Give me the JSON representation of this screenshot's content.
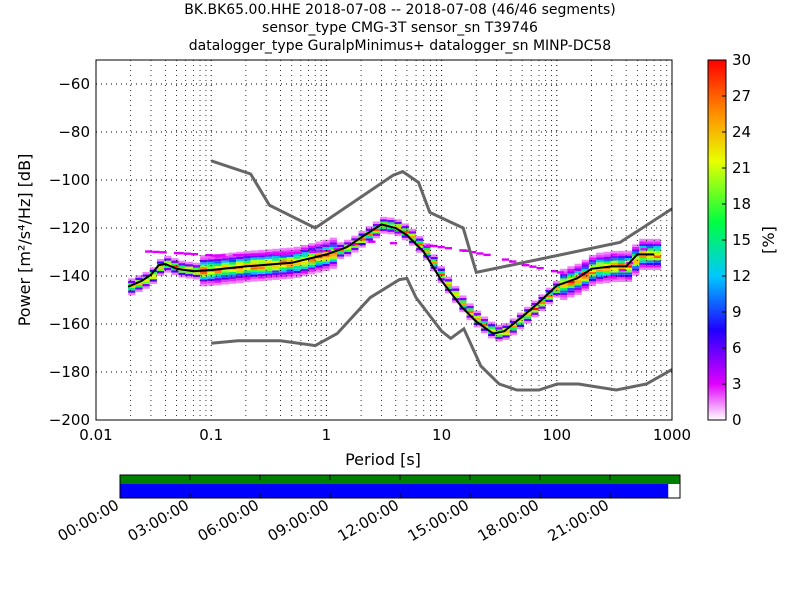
{
  "chart_data": {
    "type": "heatmap",
    "title_lines": [
      "BK.BK65.00.HHE   2018-07-08 -- 2018-07-08  (46/46 segments)",
      "sensor_type CMG-3T sensor_sn T39746",
      "datalogger_type GuralpMinimus+ datalogger_sn MINP-DC58"
    ],
    "xlabel": "Period [s]",
    "ylabel": "Power [m²/s⁴/Hz] [dB]",
    "xscale": "log",
    "xlim": [
      0.01,
      1000
    ],
    "ylim": [
      -200,
      -50
    ],
    "xticks": [
      0.01,
      0.1,
      1,
      10,
      100,
      1000
    ],
    "xtick_labels": [
      "0.01",
      "0.1",
      "1",
      "10",
      "100",
      "1000"
    ],
    "yticks": [
      -200,
      -180,
      -160,
      -140,
      -120,
      -100,
      -80,
      -60
    ],
    "ytick_labels": [
      "−200",
      "−180",
      "−160",
      "−140",
      "−120",
      "−100",
      "−80",
      "−60"
    ],
    "colorbar": {
      "label": "[%]",
      "range": [
        0,
        30
      ],
      "ticks": [
        "0",
        "3",
        "6",
        "9",
        "12",
        "15",
        "18",
        "21",
        "24",
        "27",
        "30"
      ]
    },
    "mean_curve": [
      [
        0.019,
        -144.5
      ],
      [
        0.025,
        -142
      ],
      [
        0.03,
        -139.5
      ],
      [
        0.035,
        -135.5
      ],
      [
        0.04,
        -135
      ],
      [
        0.05,
        -137
      ],
      [
        0.07,
        -138
      ],
      [
        0.1,
        -137.5
      ],
      [
        0.2,
        -136
      ],
      [
        0.5,
        -134.5
      ],
      [
        1,
        -131
      ],
      [
        1.5,
        -128
      ],
      [
        2,
        -124
      ],
      [
        3,
        -118.5
      ],
      [
        4,
        -120
      ],
      [
        5,
        -123
      ],
      [
        7,
        -130
      ],
      [
        10,
        -142
      ],
      [
        15,
        -153
      ],
      [
        20,
        -159
      ],
      [
        28,
        -164
      ],
      [
        35,
        -163
      ],
      [
        50,
        -157
      ],
      [
        70,
        -151
      ],
      [
        100,
        -144
      ],
      [
        150,
        -141
      ],
      [
        200,
        -137
      ],
      [
        300,
        -136
      ],
      [
        400,
        -136
      ],
      [
        500,
        -131
      ],
      [
        700,
        -131
      ]
    ],
    "outliers_curve": [
      [
        0.02,
        -129
      ],
      [
        0.05,
        -130
      ],
      [
        0.1,
        -131
      ],
      [
        0.3,
        -130.5
      ],
      [
        1,
        -129
      ],
      [
        2,
        -125
      ],
      [
        8,
        -127
      ],
      [
        15,
        -129
      ],
      [
        25,
        -131
      ],
      [
        50,
        -135
      ],
      [
        100,
        -138
      ],
      [
        300,
        -140
      ],
      [
        600,
        -126
      ]
    ],
    "nhnm": [
      [
        0.1,
        -92
      ],
      [
        0.22,
        -97.5
      ],
      [
        0.32,
        -110.5
      ],
      [
        0.8,
        -120
      ],
      [
        3.8,
        -98
      ],
      [
        4.6,
        -96.5
      ],
      [
        6.3,
        -101
      ],
      [
        7.9,
        -113.5
      ],
      [
        15.4,
        -120
      ],
      [
        20,
        -138.5
      ],
      [
        354,
        -126
      ],
      [
        1000,
        -112
      ]
    ],
    "nlnm": [
      [
        0.1,
        -168
      ],
      [
        0.17,
        -167
      ],
      [
        0.4,
        -167
      ],
      [
        0.8,
        -169
      ],
      [
        1.24,
        -164
      ],
      [
        2.4,
        -149
      ],
      [
        4.3,
        -141.5
      ],
      [
        5,
        -141
      ],
      [
        6,
        -149
      ],
      [
        10,
        -163
      ],
      [
        12,
        -166
      ],
      [
        15.6,
        -162
      ],
      [
        21.9,
        -177.5
      ],
      [
        31.6,
        -185
      ],
      [
        45,
        -187.5
      ],
      [
        70,
        -187.5
      ],
      [
        101,
        -185
      ],
      [
        154,
        -185
      ],
      [
        328,
        -187.5
      ],
      [
        600,
        -185
      ],
      [
        1000,
        -179
      ]
    ]
  },
  "timeline": {
    "tick_labels": [
      "00:00:00",
      "03:00:00",
      "06:00:00",
      "09:00:00",
      "12:00:00",
      "15:00:00",
      "18:00:00",
      "21:00:00"
    ],
    "coverage_fraction": 0.979,
    "colors": {
      "segments": "#008000",
      "data": "#0000ff"
    }
  }
}
